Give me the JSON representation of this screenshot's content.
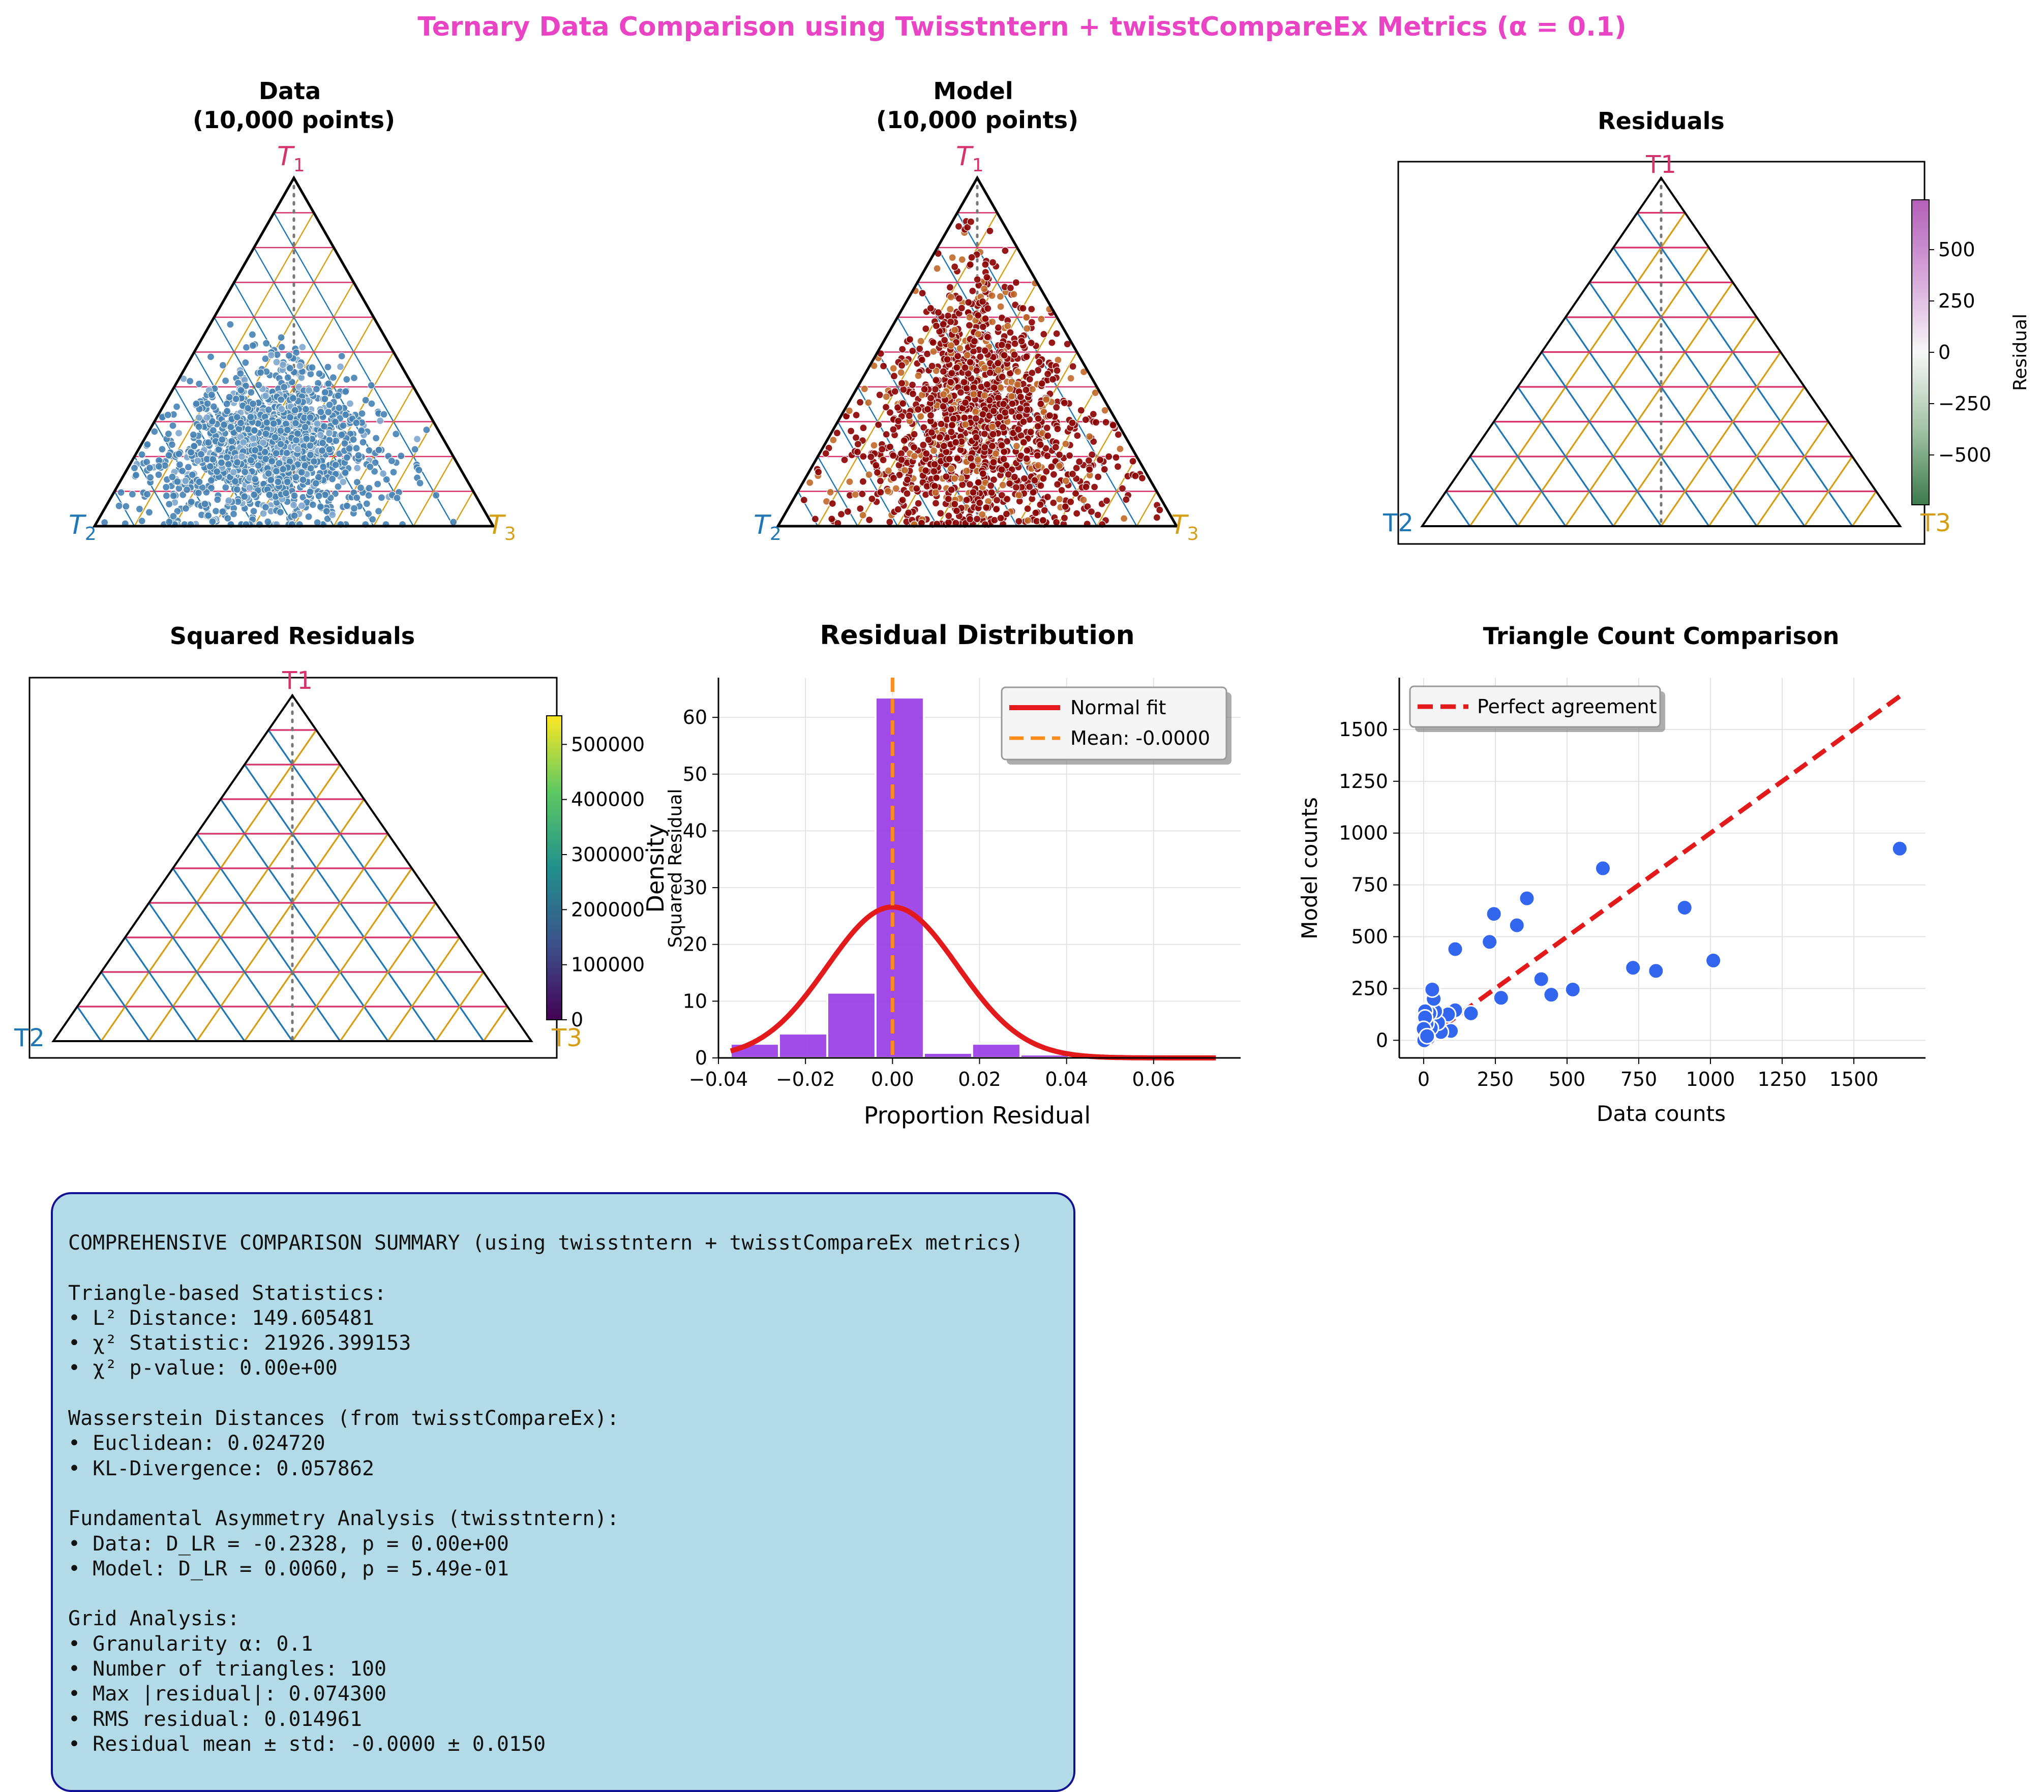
{
  "figure": {
    "suptitle": "Ternary Data Comparison using Twisstntern + twisstCompareEx Metrics (α = 0.1)",
    "colors": {
      "title": "#e844c4",
      "t1": "#d6336c",
      "t2": "#1f77b4",
      "t3": "#d69e15",
      "data_points": "#4682b4",
      "model_points": "#8b0000",
      "histogram": "#9a3de8",
      "normal_fit": "#e31a1c",
      "mean_line": "#ff8c1a",
      "scatter": "#3366ee",
      "summary_bg": "#add8e6",
      "summary_border": "#00008b"
    }
  },
  "panels": {
    "data": {
      "title_line1": "Data",
      "title_line2": "(10,000 points)",
      "label_t1": "T",
      "sub_t1": "1",
      "label_t2": "T",
      "sub_t2": "2",
      "label_t3": "T",
      "sub_t3": "3"
    },
    "model": {
      "title_line1": "Model",
      "title_line2": "(10,000 points)",
      "label_t1": "T",
      "sub_t1": "1",
      "label_t2": "T",
      "sub_t2": "2",
      "label_t3": "T",
      "sub_t3": "3"
    },
    "residuals": {
      "title": "Residuals",
      "label_t1": "T1",
      "label_t2": "T2",
      "label_t3": "T3",
      "colorbar_label": "Residual",
      "colorbar_ticks": [
        "500",
        "250",
        "0",
        "−250",
        "−500"
      ],
      "colorbar_tick_values": [
        500,
        250,
        0,
        -250,
        -500
      ],
      "colorbar_range": [
        -743,
        743
      ]
    },
    "squared": {
      "title": "Squared Residuals",
      "label_t1": "T1",
      "label_t2": "T2",
      "label_t3": "T3",
      "colorbar_label": "Squared Residual",
      "colorbar_ticks": [
        "500000",
        "400000",
        "300000",
        "200000",
        "100000",
        "0"
      ],
      "colorbar_tick_values": [
        500000,
        400000,
        300000,
        200000,
        100000,
        0
      ],
      "colorbar_range": [
        0,
        552000
      ]
    }
  },
  "chart_data": [
    {
      "type": "scatter",
      "title": "Data\n(10,000 points)",
      "axes": [
        "T1",
        "T2",
        "T3"
      ],
      "grid_alpha": 0.1,
      "n_points": 10000,
      "point_color": "#4682b4",
      "t1_range": [
        0.0,
        0.6
      ],
      "t2_range": [
        0.2,
        0.98
      ],
      "t3_range": [
        0.02,
        0.7
      ],
      "points_sample": [
        {
          "t1": 0.3,
          "t2": 0.4,
          "t3": 0.3
        },
        {
          "t1": 0.25,
          "t2": 0.45,
          "t3": 0.3
        },
        {
          "t1": 0.2,
          "t2": 0.5,
          "t3": 0.3
        },
        {
          "t1": 0.35,
          "t2": 0.4,
          "t3": 0.25
        },
        {
          "t1": 0.15,
          "t2": 0.55,
          "t3": 0.3
        },
        {
          "t1": 0.1,
          "t2": 0.75,
          "t3": 0.15
        },
        {
          "t1": 0.05,
          "t2": 0.9,
          "t3": 0.05
        },
        {
          "t1": 0.2,
          "t2": 0.35,
          "t3": 0.45
        },
        {
          "t1": 0.15,
          "t2": 0.3,
          "t3": 0.55
        },
        {
          "t1": 0.55,
          "t2": 0.25,
          "t3": 0.2
        }
      ]
    },
    {
      "type": "scatter",
      "title": "Model\n(10,000 points)",
      "axes": [
        "T1",
        "T2",
        "T3"
      ],
      "grid_alpha": 0.1,
      "n_points": 10000,
      "point_color": "#8b0000",
      "t1_range": [
        0.0,
        0.95
      ],
      "t2_range": [
        0.0,
        0.95
      ],
      "t3_range": [
        0.0,
        0.9
      ],
      "points_sample": [
        {
          "t1": 0.35,
          "t2": 0.35,
          "t3": 0.3
        },
        {
          "t1": 0.55,
          "t2": 0.25,
          "t3": 0.2
        },
        {
          "t1": 0.75,
          "t2": 0.15,
          "t3": 0.1
        },
        {
          "t1": 0.9,
          "t2": 0.05,
          "t3": 0.05
        },
        {
          "t1": 0.15,
          "t2": 0.55,
          "t3": 0.3
        },
        {
          "t1": 0.1,
          "t2": 0.75,
          "t3": 0.15
        },
        {
          "t1": 0.1,
          "t2": 0.25,
          "t3": 0.65
        },
        {
          "t1": 0.05,
          "t2": 0.2,
          "t3": 0.75
        }
      ]
    },
    {
      "type": "heatmap",
      "title": "Residuals",
      "axes": [
        "T1",
        "T2",
        "T3"
      ],
      "grid_alpha": 0.1,
      "colorbar": {
        "label": "Residual",
        "range": [
          -743,
          743
        ],
        "ticks": [
          500,
          250,
          0,
          -250,
          -500
        ]
      }
    },
    {
      "type": "heatmap",
      "title": "Squared Residuals",
      "axes": [
        "T1",
        "T2",
        "T3"
      ],
      "grid_alpha": 0.1,
      "colorbar": {
        "label": "Squared Residual",
        "range": [
          0,
          552000
        ],
        "ticks": [
          0,
          100000,
          200000,
          300000,
          400000,
          500000
        ]
      }
    },
    {
      "type": "bar",
      "title": "Residual Distribution",
      "xlabel": "Proportion Residual",
      "ylabel": "Density",
      "xlim": [
        -0.04,
        0.08
      ],
      "ylim": [
        0,
        67
      ],
      "xticks": [
        "−0.04",
        "−0.02",
        "0.00",
        "0.02",
        "0.04",
        "0.06"
      ],
      "xtick_values": [
        -0.04,
        -0.02,
        0.0,
        0.02,
        0.04,
        0.06
      ],
      "yticks": [
        "0",
        "10",
        "20",
        "30",
        "40",
        "50",
        "60"
      ],
      "ytick_values": [
        0,
        10,
        20,
        30,
        40,
        50,
        60
      ],
      "bin_width": 0.0111,
      "bins": [
        {
          "left": -0.0372,
          "density": 2.5
        },
        {
          "left": -0.0261,
          "density": 4.3
        },
        {
          "left": -0.015,
          "density": 11.5
        },
        {
          "left": -0.0039,
          "density": 63.5
        },
        {
          "left": 0.0072,
          "density": 0.9
        },
        {
          "left": 0.0183,
          "density": 2.5
        },
        {
          "left": 0.0294,
          "density": 0.6
        },
        {
          "left": 0.0405,
          "density": 0.0
        },
        {
          "left": 0.0516,
          "density": 0.0
        },
        {
          "left": 0.0627,
          "density": 0.1
        }
      ],
      "normal_fit": {
        "mean": 0.0,
        "std": 0.015
      },
      "mean_line": 0.0,
      "legend": {
        "position": "top-right",
        "entries": [
          "Normal fit",
          "Mean: -0.0000"
        ]
      }
    },
    {
      "type": "scatter",
      "title": "Triangle Count Comparison",
      "xlabel": "Data counts",
      "ylabel": "Model counts",
      "xlim": [
        -85,
        1750
      ],
      "ylim": [
        -85,
        1750
      ],
      "xticks": [
        "0",
        "250",
        "500",
        "750",
        "1000",
        "1250",
        "1500"
      ],
      "xtick_values": [
        0,
        250,
        500,
        750,
        1000,
        1250,
        1500
      ],
      "yticks": [
        "0",
        "250",
        "500",
        "750",
        "1000",
        "1250",
        "1500"
      ],
      "ytick_values": [
        0,
        250,
        500,
        750,
        1000,
        1250,
        1500
      ],
      "points": [
        {
          "x": 1660,
          "y": 925
        },
        {
          "x": 1010,
          "y": 385
        },
        {
          "x": 910,
          "y": 640
        },
        {
          "x": 810,
          "y": 335
        },
        {
          "x": 730,
          "y": 350
        },
        {
          "x": 625,
          "y": 830
        },
        {
          "x": 520,
          "y": 245
        },
        {
          "x": 445,
          "y": 220
        },
        {
          "x": 410,
          "y": 295
        },
        {
          "x": 360,
          "y": 685
        },
        {
          "x": 325,
          "y": 555
        },
        {
          "x": 270,
          "y": 205
        },
        {
          "x": 245,
          "y": 610
        },
        {
          "x": 230,
          "y": 475
        },
        {
          "x": 165,
          "y": 130
        },
        {
          "x": 110,
          "y": 440
        },
        {
          "x": 110,
          "y": 145
        },
        {
          "x": 95,
          "y": 45
        },
        {
          "x": 85,
          "y": 125
        },
        {
          "x": 60,
          "y": 40
        },
        {
          "x": 50,
          "y": 85
        },
        {
          "x": 40,
          "y": 140
        },
        {
          "x": 35,
          "y": 200
        },
        {
          "x": 30,
          "y": 245
        },
        {
          "x": 25,
          "y": 60
        },
        {
          "x": 20,
          "y": 130
        },
        {
          "x": 15,
          "y": 10
        },
        {
          "x": 10,
          "y": 80
        },
        {
          "x": 5,
          "y": 140
        },
        {
          "x": 5,
          "y": 110
        },
        {
          "x": 3,
          "y": 30
        },
        {
          "x": 2,
          "y": 0
        },
        {
          "x": 0,
          "y": 55
        },
        {
          "x": 12,
          "y": 20
        }
      ],
      "reference_line": {
        "from": [
          0,
          0
        ],
        "to": [
          1660,
          1660
        ]
      },
      "legend": {
        "position": "top-left",
        "entries": [
          "Perfect agreement"
        ]
      }
    }
  ],
  "summary": {
    "lines": [
      "COMPREHENSIVE COMPARISON SUMMARY (using twisstntern + twisstCompareEx metrics)",
      "",
      "Triangle-based Statistics:",
      "• L² Distance: 149.605481",
      "• χ² Statistic: 21926.399153",
      "• χ² p-value: 0.00e+00",
      "",
      "Wasserstein Distances (from twisstCompareEx):",
      "• Euclidean: 0.024720",
      "• KL-Divergence: 0.057862",
      "",
      "Fundamental Asymmetry Analysis (twisstntern):",
      "• Data: D_LR = -0.2328, p = 0.00e+00",
      "• Model: D_LR = 0.0060, p = 5.49e-01",
      "",
      "Grid Analysis:",
      "• Granularity α: 0.1",
      "• Number of triangles: 100",
      "• Max |residual|: 0.074300",
      "• RMS residual: 0.014961",
      "• Residual mean ± std: -0.0000 ± 0.0150"
    ]
  }
}
